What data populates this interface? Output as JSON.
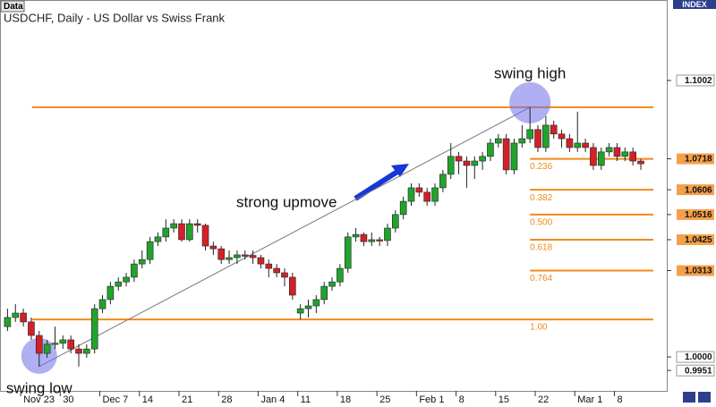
{
  "chart_data": {
    "type": "candlestick",
    "title": "USDCHF, Daily - US Dollar vs Swiss Frank",
    "source_tab": "Data",
    "index_label": "INDEX",
    "annotations": {
      "swing_high": "swing high",
      "swing_low": "swing low",
      "upmove": "strong upmove"
    },
    "categories": [
      null,
      null,
      "Nov 23",
      null,
      null,
      null,
      null,
      "30",
      null,
      null,
      null,
      null,
      "Dec 7",
      null,
      null,
      null,
      null,
      "14",
      null,
      null,
      null,
      null,
      "21",
      null,
      null,
      null,
      null,
      "28",
      null,
      null,
      null,
      null,
      "Jan 4",
      null,
      null,
      null,
      null,
      "11",
      null,
      null,
      null,
      null,
      "18",
      null,
      null,
      null,
      null,
      "25",
      null,
      null,
      null,
      null,
      "Feb 1",
      null,
      null,
      null,
      null,
      "8",
      null,
      null,
      null,
      null,
      "15",
      null,
      null,
      null,
      null,
      "22",
      null,
      null,
      null,
      null,
      "Mar 1",
      null,
      null,
      null,
      null,
      "8",
      null,
      null,
      null
    ],
    "open": [
      1.011,
      1.0143,
      1.0159,
      1.0127,
      1.0078,
      1.0013,
      1.0046,
      1.005,
      1.0062,
      1.0029,
      1.0013,
      1.0029,
      1.0175,
      1.0208,
      1.0256,
      1.0272,
      1.0289,
      1.0337,
      1.0353,
      1.0418,
      1.0435,
      1.0467,
      1.0483,
      1.0425,
      1.0483,
      1.0477,
      1.0402,
      1.0392,
      1.0353,
      1.036,
      1.037,
      1.0368,
      1.036,
      1.0337,
      1.0321,
      1.0305,
      1.0289,
      1.0159,
      1.0175,
      1.0185,
      1.0208,
      1.0256,
      1.0272,
      1.0321,
      1.0435,
      1.0444,
      1.0418,
      1.0425,
      1.0422,
      1.0467,
      1.0516,
      1.0564,
      1.0613,
      1.0597,
      1.0564,
      1.0613,
      1.0662,
      1.0727,
      1.071,
      1.0694,
      1.071,
      1.0727,
      1.0775,
      1.0791,
      1.0678,
      1.0775,
      1.0791,
      1.0824,
      1.0759,
      1.084,
      1.0808,
      1.0791,
      1.0759,
      1.0775,
      1.0759,
      1.0694,
      1.0743,
      1.0759,
      1.0727,
      1.0743,
      1.071
    ],
    "high": [
      1.0175,
      1.0191,
      1.0175,
      1.0143,
      1.0094,
      1.0062,
      1.011,
      1.0078,
      1.0078,
      1.0046,
      1.0046,
      1.0191,
      1.0224,
      1.0272,
      1.0289,
      1.0305,
      1.0353,
      1.0386,
      1.0435,
      1.0451,
      1.0499,
      1.0499,
      1.0499,
      1.0499,
      1.0499,
      1.0483,
      1.0418,
      1.0402,
      1.0386,
      1.0386,
      1.0386,
      1.0386,
      1.037,
      1.0353,
      1.0337,
      1.0321,
      1.0305,
      1.0191,
      1.0208,
      1.0224,
      1.0272,
      1.0289,
      1.0337,
      1.0451,
      1.0467,
      1.0451,
      1.0451,
      1.0435,
      1.0483,
      1.0532,
      1.0581,
      1.0629,
      1.0629,
      1.0613,
      1.0629,
      1.0678,
      1.0775,
      1.0743,
      1.0727,
      1.0727,
      1.0743,
      1.0791,
      1.0808,
      1.0808,
      1.0791,
      1.084,
      1.0905,
      1.084,
      1.0873,
      1.0856,
      1.0824,
      1.0808,
      1.0889,
      1.0791,
      1.0775,
      1.0759,
      1.0775,
      1.0775,
      1.0759,
      1.0759,
      1.0718
    ],
    "low": [
      1.0094,
      1.0127,
      1.011,
      1.0062,
      0.9965,
      0.9997,
      1.0029,
      1.0029,
      1.0013,
      0.9965,
      0.9997,
      1.0013,
      1.0159,
      1.0191,
      1.024,
      1.0256,
      1.0272,
      1.0321,
      1.0337,
      1.0402,
      1.0418,
      1.0451,
      1.0418,
      1.0418,
      1.0451,
      1.0386,
      1.037,
      1.0337,
      1.0337,
      1.0337,
      1.0353,
      1.0337,
      1.0321,
      1.0289,
      1.0289,
      1.0256,
      1.0208,
      1.0136,
      1.0143,
      1.0159,
      1.0191,
      1.024,
      1.0256,
      1.0305,
      1.0418,
      1.0402,
      1.0402,
      1.0402,
      1.0402,
      1.0451,
      1.0499,
      1.0548,
      1.0581,
      1.0548,
      1.0548,
      1.0597,
      1.0645,
      1.0662,
      1.0613,
      1.0645,
      1.0678,
      1.071,
      1.0759,
      1.0662,
      1.0662,
      1.0759,
      1.0775,
      1.0743,
      1.0743,
      1.0791,
      1.0759,
      1.0743,
      1.0743,
      1.0743,
      1.0678,
      1.0678,
      1.0727,
      1.071,
      1.071,
      1.0694,
      1.0678
    ],
    "close": [
      1.0143,
      1.0159,
      1.0127,
      1.0078,
      1.0013,
      1.0046,
      1.005,
      1.0062,
      1.0029,
      1.0013,
      1.0029,
      1.0175,
      1.0208,
      1.0256,
      1.0272,
      1.0289,
      1.0337,
      1.0353,
      1.0418,
      1.0435,
      1.0467,
      1.0483,
      1.0425,
      1.0483,
      1.0477,
      1.0402,
      1.0392,
      1.0353,
      1.036,
      1.037,
      1.0368,
      1.036,
      1.0337,
      1.0321,
      1.0305,
      1.0289,
      1.0224,
      1.0175,
      1.0185,
      1.0208,
      1.0256,
      1.0272,
      1.0321,
      1.0435,
      1.0444,
      1.0418,
      1.0425,
      1.0422,
      1.0467,
      1.0516,
      1.0564,
      1.0613,
      1.0597,
      1.0564,
      1.0613,
      1.0662,
      1.0727,
      1.071,
      1.0694,
      1.071,
      1.0727,
      1.0775,
      1.0791,
      1.0678,
      1.0775,
      1.0791,
      1.0824,
      1.0759,
      1.084,
      1.0808,
      1.0791,
      1.0759,
      1.0775,
      1.0759,
      1.0694,
      1.0743,
      1.0759,
      1.0727,
      1.0743,
      1.071,
      1.07
    ],
    "up_color": "#21a32c",
    "down_color": "#d42029",
    "fib_color": "#f08a1c",
    "fib_levels": [
      {
        "value": 1.0905
      },
      {
        "value": 1.0718,
        "label": "0.236"
      },
      {
        "value": 1.0606,
        "label": "0.382"
      },
      {
        "value": 1.0516,
        "label": "0.500"
      },
      {
        "value": 1.0425,
        "label": "0.618"
      },
      {
        "value": 1.0313,
        "label": "0.764"
      },
      {
        "value": 1.0136,
        "label": "1.00"
      }
    ],
    "ylim": [
      0.9877,
      1.1245
    ],
    "yticks": [
      1.1002,
      1.0718,
      1.0606,
      1.0516,
      1.0425,
      1.0313,
      {
        "value": 1,
        "label": "1.0000"
      },
      0.9951
    ]
  }
}
